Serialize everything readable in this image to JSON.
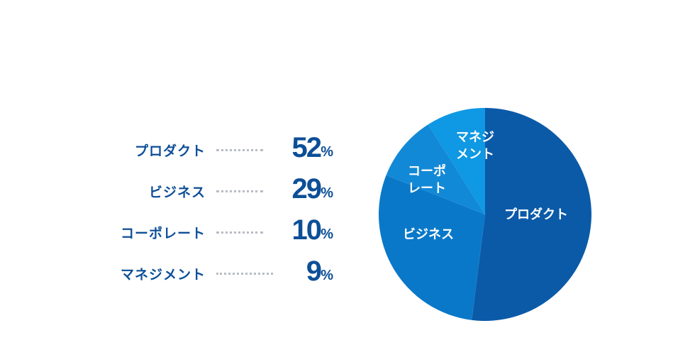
{
  "chart_data": {
    "type": "pie",
    "unit": "%",
    "slices": [
      {
        "label": "プロダクト",
        "pie_label_lines": [
          "プロダクト"
        ],
        "value": 52,
        "color": "#0b5aa8"
      },
      {
        "label": "ビジネス",
        "pie_label_lines": [
          "ビジネス"
        ],
        "value": 29,
        "color": "#0a78c8"
      },
      {
        "label": "コーポレート",
        "pie_label_lines": [
          "コーポ",
          "レート"
        ],
        "value": 10,
        "color": "#1289d6"
      },
      {
        "label": "マネジメント",
        "pie_label_lines": [
          "マネジ",
          "メント"
        ],
        "value": 9,
        "color": "#0f98e3"
      }
    ]
  }
}
